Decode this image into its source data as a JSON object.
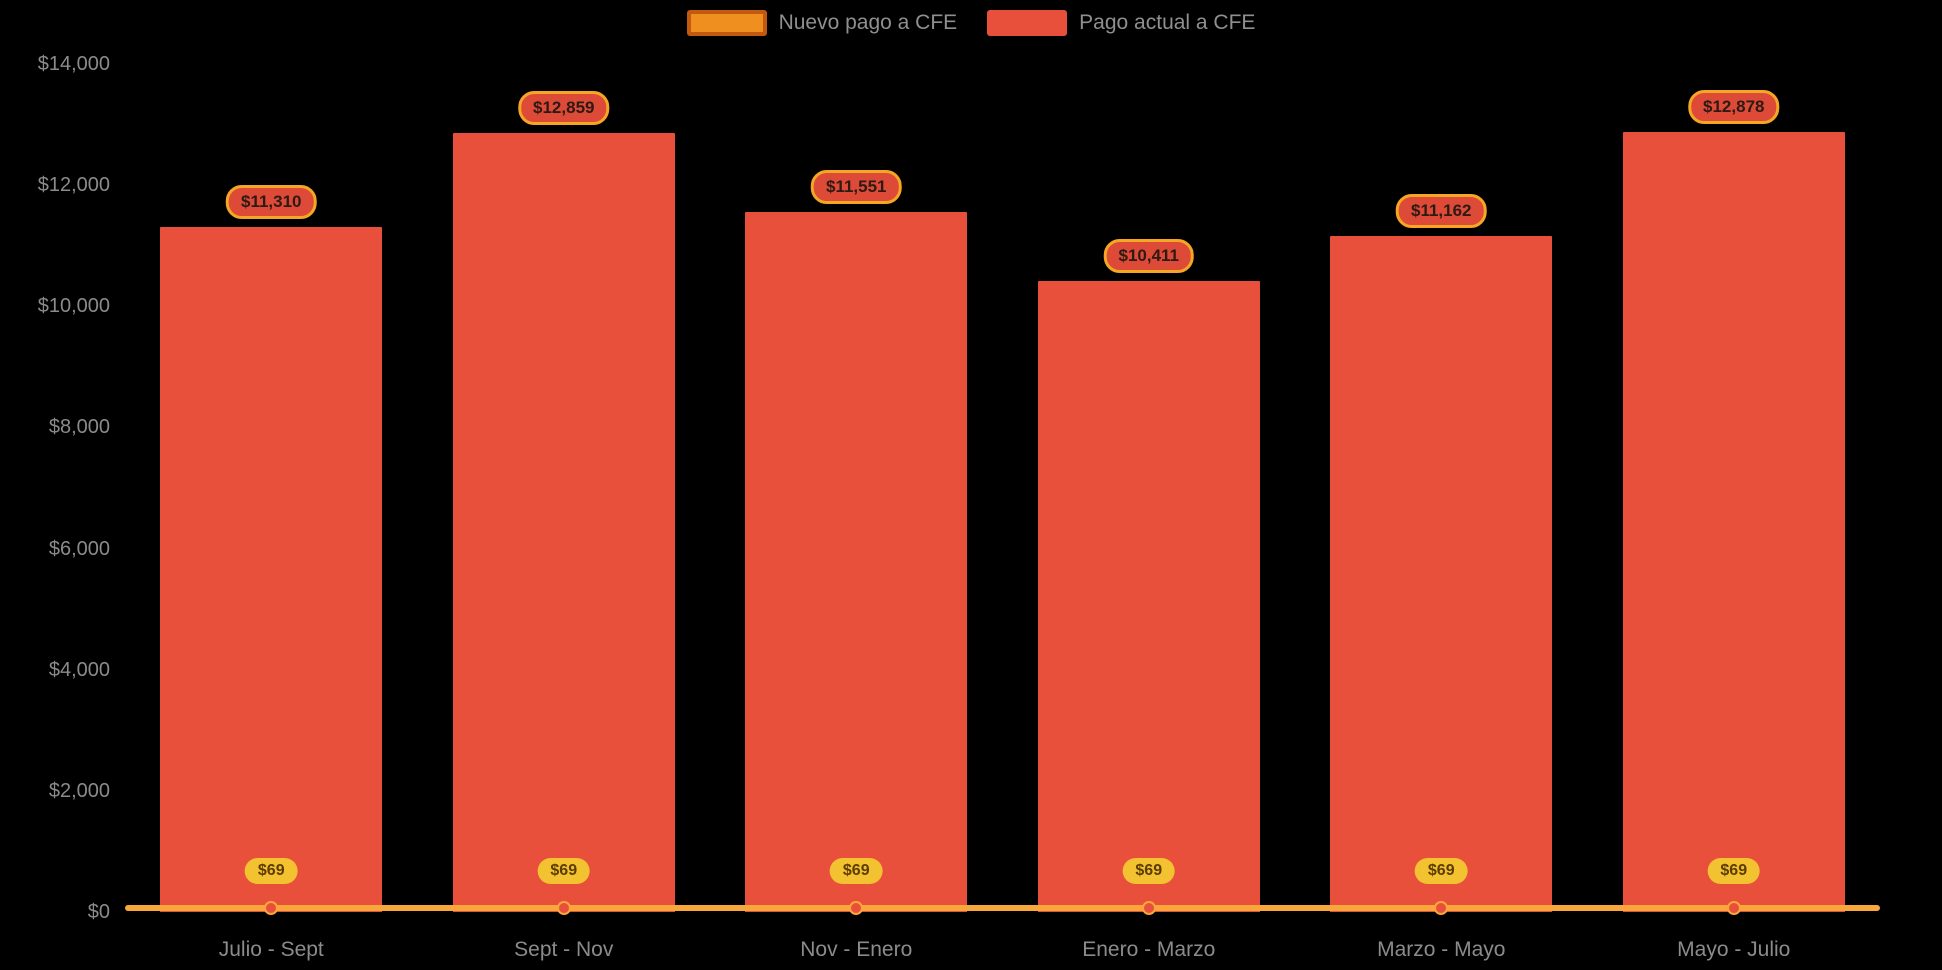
{
  "background": "#000000",
  "theme": {
    "axis_text_color": "#8b8b8b",
    "legend_text_color": "#8f8f8f",
    "bar_color": "#e8503c",
    "line_color": "#f9a73b",
    "line_point_color": "#e8503c",
    "value_badge_fill": "#dd4b38",
    "value_badge_border": "#f5a623",
    "value_badge_text": "#2d1a12",
    "point_badge_fill": "#f2c230",
    "point_badge_text": "#5d3c00",
    "nuevo_swatch_fill": "#ef8f1f",
    "nuevo_swatch_border": "#c2590e"
  },
  "legend": {
    "items": [
      {
        "label": "Nuevo pago a CFE"
      },
      {
        "label": "Pago actual a CFE"
      }
    ]
  },
  "chart_data": {
    "type": "bar",
    "title": "",
    "xlabel": "",
    "ylabel": "",
    "categories": [
      "Julio - Sept",
      "Sept - Nov",
      "Nov - Enero",
      "Enero - Marzo",
      "Marzo - Mayo",
      "Mayo - Julio"
    ],
    "series": [
      {
        "name": "Nuevo pago a CFE",
        "type": "line",
        "values": [
          69,
          69,
          69,
          69,
          69,
          69
        ],
        "point_labels": [
          "$69",
          "$69",
          "$69",
          "$69",
          "$69",
          "$69"
        ]
      },
      {
        "name": "Pago actual a CFE",
        "type": "bar",
        "values": [
          11310,
          12859,
          11551,
          10411,
          11162,
          12878
        ],
        "point_labels": [
          "$11,310",
          "$12,859",
          "$11,551",
          "$10,411",
          "$11,162",
          "$12,878"
        ]
      }
    ],
    "y_ticks": [
      "$0",
      "$2,000",
      "$4,000",
      "$6,000",
      "$8,000",
      "$10,000",
      "$12,000",
      "$14,000"
    ],
    "ylim": [
      0,
      14000
    ],
    "grid": false,
    "legend_position": "top-center"
  }
}
